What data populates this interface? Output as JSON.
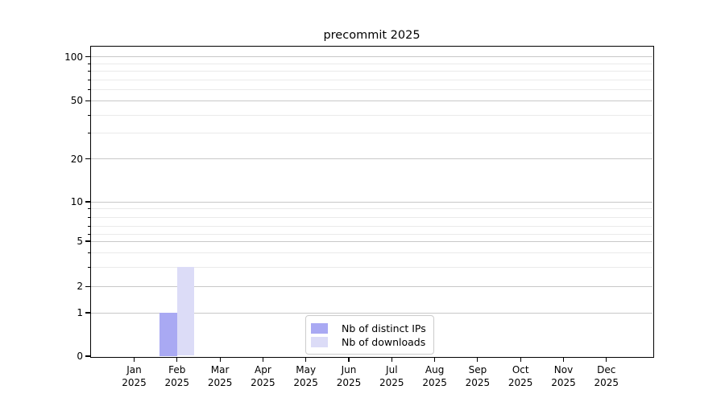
{
  "chart_data": {
    "type": "bar",
    "title": "precommit 2025",
    "categories": [
      "Jan 2025",
      "Feb 2025",
      "Mar 2025",
      "Apr 2025",
      "May 2025",
      "Jun 2025",
      "Jul 2025",
      "Aug 2025",
      "Sep 2025",
      "Oct 2025",
      "Nov 2025",
      "Dec 2025"
    ],
    "series": [
      {
        "name": "Nb of distinct IPs",
        "color": "#a9a9f3",
        "values": [
          0,
          1,
          0,
          0,
          0,
          0,
          0,
          0,
          0,
          0,
          0,
          0
        ]
      },
      {
        "name": "Nb of downloads",
        "color": "#dcdcf7",
        "values": [
          0,
          3,
          0,
          0,
          0,
          0,
          0,
          0,
          0,
          0,
          0,
          0
        ]
      }
    ],
    "y_axis": {
      "scale": "symlog",
      "major_ticks": [
        0,
        1,
        2,
        5,
        10,
        20,
        50,
        100
      ],
      "minor_ticks": [
        3,
        4,
        6,
        7,
        8,
        9,
        30,
        40,
        60,
        70,
        80,
        90
      ],
      "range": [
        0,
        110
      ]
    },
    "x_axis": {
      "label_year_on_second_line": true
    },
    "grid": true,
    "legend": {
      "position": "lower center",
      "entries": [
        "Nb of distinct IPs",
        "Nb of downloads"
      ]
    },
    "colors": {
      "grid_major": "#c8c8c8",
      "grid_minor": "#eaeaea",
      "spine": "#000000",
      "text": "#000000"
    }
  }
}
